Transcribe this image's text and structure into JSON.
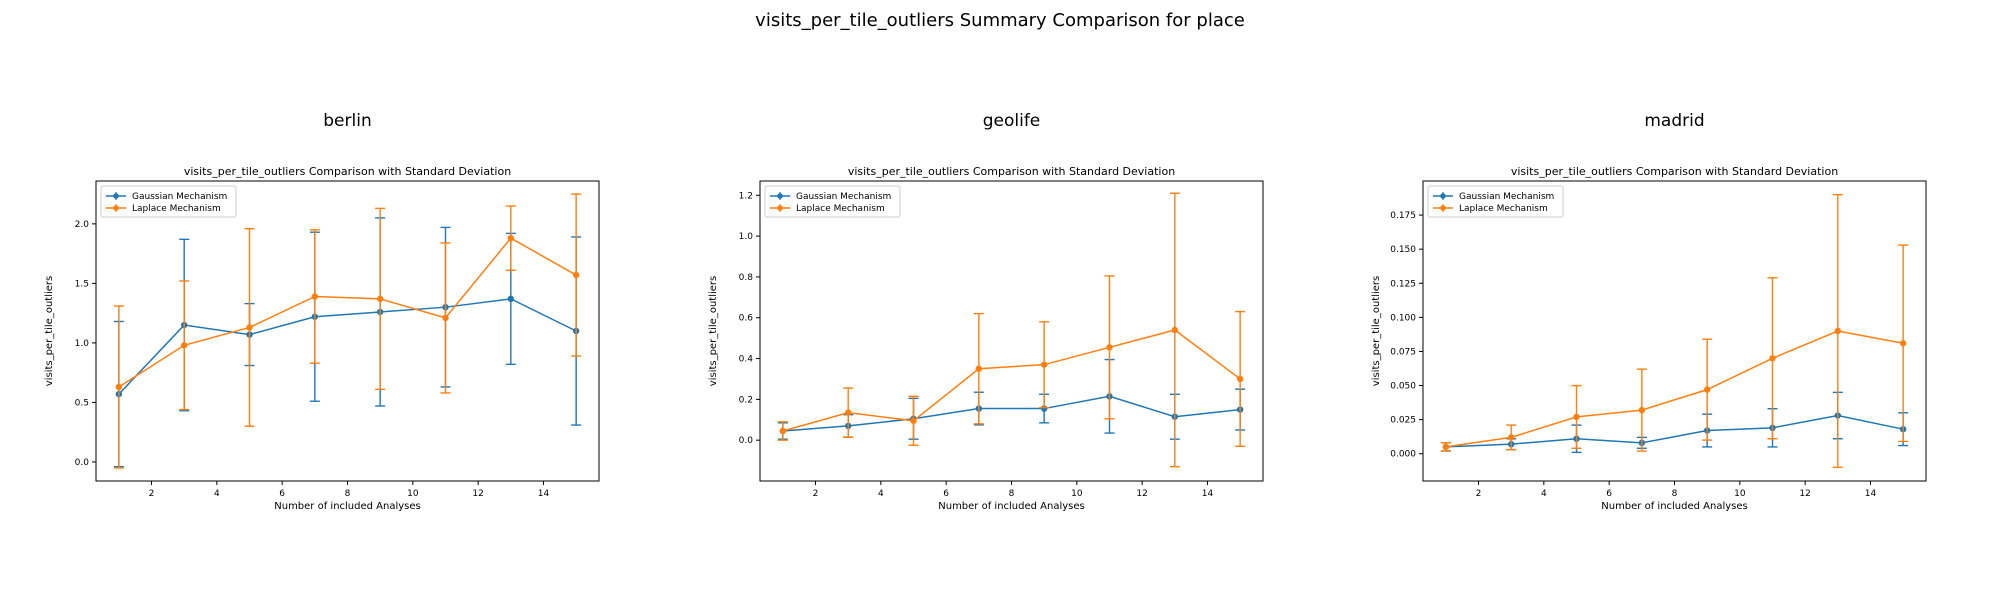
{
  "figure": {
    "title": "visits_per_tile_outliers Summary Comparison for place"
  },
  "colors": {
    "gaussian": "#1f77b4",
    "laplace": "#ff7f0e"
  },
  "chart_data": [
    {
      "type": "line",
      "panel_title": "berlin",
      "title": "visits_per_tile_outliers Comparison with Standard Deviation",
      "xlabel": "Number of included Analyses",
      "ylabel": "visits_per_tile_outliers",
      "x": [
        1,
        3,
        5,
        7,
        9,
        11,
        13,
        15
      ],
      "xlim": [
        0.3,
        15.7
      ],
      "ylim": [
        -0.16,
        2.36
      ],
      "xticks": [
        2,
        4,
        6,
        8,
        10,
        12,
        14
      ],
      "yticks": [
        0.0,
        0.5,
        1.0,
        1.5,
        2.0
      ],
      "ytick_labels": [
        "0.0",
        "0.5",
        "1.0",
        "1.5",
        "2.0"
      ],
      "legend_position": "upper-left",
      "grid": false,
      "series": [
        {
          "name": "Gaussian Mechanism",
          "values": [
            0.57,
            1.15,
            1.07,
            1.22,
            1.26,
            1.3,
            1.37,
            1.1
          ],
          "err": [
            0.61,
            0.72,
            0.26,
            0.71,
            0.79,
            0.67,
            0.55,
            0.79
          ]
        },
        {
          "name": "Laplace Mechanism",
          "values": [
            0.63,
            0.98,
            1.13,
            1.39,
            1.37,
            1.21,
            1.88,
            1.57
          ],
          "err": [
            0.68,
            0.54,
            0.83,
            0.56,
            0.76,
            0.63,
            0.27,
            0.68
          ]
        }
      ]
    },
    {
      "type": "line",
      "panel_title": "geolife",
      "title": "visits_per_tile_outliers Comparison with Standard Deviation",
      "xlabel": "Number of included Analyses",
      "ylabel": "visits_per_tile_outliers",
      "x": [
        1,
        3,
        5,
        7,
        9,
        11,
        13,
        15
      ],
      "xlim": [
        0.3,
        15.7
      ],
      "ylim": [
        -0.2,
        1.27
      ],
      "xticks": [
        2,
        4,
        6,
        8,
        10,
        12,
        14
      ],
      "yticks": [
        0.0,
        0.2,
        0.4,
        0.6,
        0.8,
        1.0,
        1.2
      ],
      "ytick_labels": [
        "0.0",
        "0.2",
        "0.4",
        "0.6",
        "0.8",
        "1.0",
        "1.2"
      ],
      "legend_position": "upper-left",
      "grid": false,
      "series": [
        {
          "name": "Gaussian Mechanism",
          "values": [
            0.045,
            0.07,
            0.105,
            0.155,
            0.155,
            0.215,
            0.115,
            0.15
          ],
          "err": [
            0.04,
            0.055,
            0.1,
            0.08,
            0.07,
            0.18,
            0.11,
            0.1
          ]
        },
        {
          "name": "Laplace Mechanism",
          "values": [
            0.045,
            0.135,
            0.095,
            0.35,
            0.37,
            0.455,
            0.54,
            0.3
          ],
          "err": [
            0.045,
            0.12,
            0.12,
            0.27,
            0.21,
            0.35,
            0.67,
            0.33
          ]
        }
      ]
    },
    {
      "type": "line",
      "panel_title": "madrid",
      "title": "visits_per_tile_outliers Comparison with Standard Deviation",
      "xlabel": "Number of included Analyses",
      "ylabel": "visits_per_tile_outliers",
      "x": [
        1,
        3,
        5,
        7,
        9,
        11,
        13,
        15
      ],
      "xlim": [
        0.3,
        15.7
      ],
      "ylim": [
        -0.02,
        0.2
      ],
      "xticks": [
        2,
        4,
        6,
        8,
        10,
        12,
        14
      ],
      "yticks": [
        0.0,
        0.025,
        0.05,
        0.075,
        0.1,
        0.125,
        0.15,
        0.175
      ],
      "ytick_labels": [
        "0.000",
        "0.025",
        "0.050",
        "0.075",
        "0.100",
        "0.125",
        "0.150",
        "0.175"
      ],
      "legend_position": "upper-left",
      "grid": false,
      "series": [
        {
          "name": "Gaussian Mechanism",
          "values": [
            0.005,
            0.007,
            0.011,
            0.008,
            0.017,
            0.019,
            0.028,
            0.018
          ],
          "err": [
            0.003,
            0.004,
            0.01,
            0.004,
            0.012,
            0.014,
            0.017,
            0.012
          ]
        },
        {
          "name": "Laplace Mechanism",
          "values": [
            0.005,
            0.012,
            0.027,
            0.032,
            0.047,
            0.07,
            0.09,
            0.081
          ],
          "err": [
            0.003,
            0.009,
            0.023,
            0.03,
            0.037,
            0.059,
            0.1,
            0.072
          ]
        }
      ]
    }
  ]
}
